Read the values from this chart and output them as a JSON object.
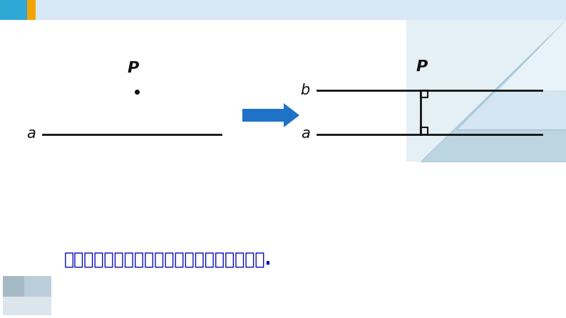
{
  "bg_color": "#ffffff",
  "header_bar_color": "#d9e8f5",
  "header_square_blue": "#2ea8d5",
  "header_square_yellow": "#f0a500",
  "bottom_text": "在同一平面内垂直于同一直线的两条直线平行.",
  "bottom_text_color": "#0000bb",
  "line_color": "#111111",
  "label_color": "#111111",
  "arrow_color": "#1e72c8",
  "deco_bg": "#cfe0ed",
  "deco_tri1": "#b8d0e0",
  "deco_tri2": "#daeaf5"
}
